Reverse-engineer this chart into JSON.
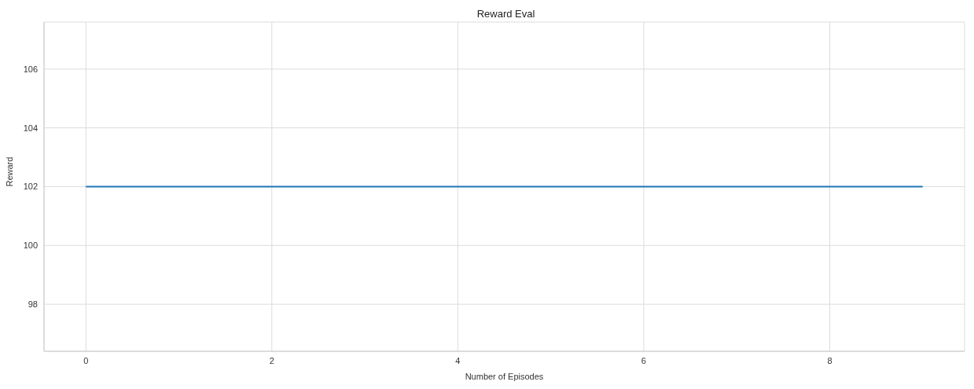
{
  "chart_data": {
    "type": "line",
    "title": "Reward Eval",
    "xlabel": "Number of Episodes",
    "ylabel": "Reward",
    "x": [
      0,
      9
    ],
    "series": [
      {
        "color": "#1f77b4",
        "values": [
          102,
          102
        ]
      }
    ],
    "xlim": [
      -0.45,
      9.45
    ],
    "xticks": [
      0,
      2,
      4,
      6,
      8
    ],
    "ylim": [
      96.4,
      107.6
    ],
    "yticks": [
      98,
      100,
      102,
      104,
      106
    ],
    "grid": true,
    "legend": false,
    "marker": "none",
    "line_style": "solid"
  }
}
